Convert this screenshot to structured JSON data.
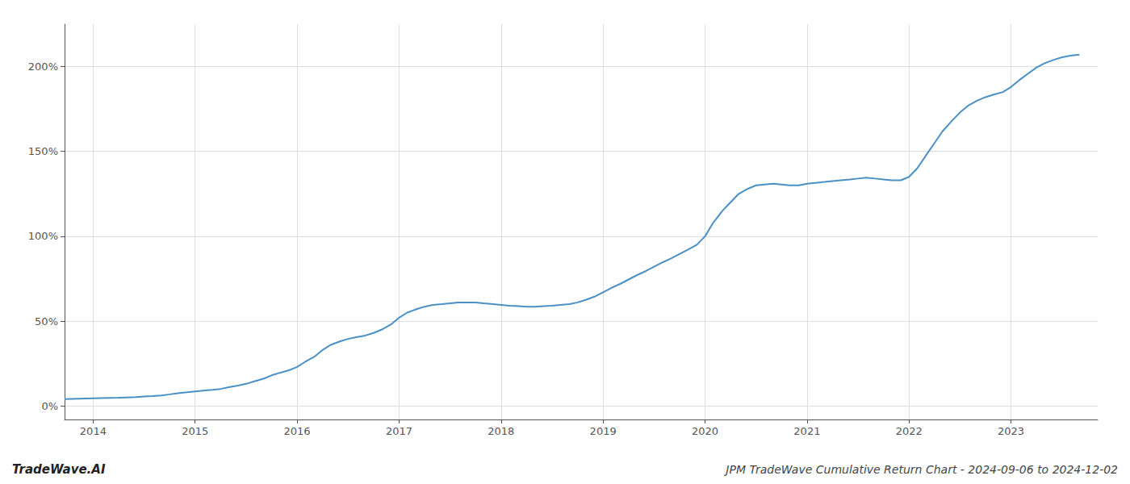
{
  "chart_data": {
    "type": "line",
    "title": "JPM TradeWave Cumulative Return Chart - 2024-09-06 to 2024-12-02",
    "annotations": [
      "TradeWave.AI"
    ],
    "color": "#4a90c4",
    "grid": true,
    "x": [
      2013.72,
      2014.0,
      2014.08,
      2014.17,
      2014.25,
      2014.33,
      2014.42,
      2014.5,
      2014.58,
      2014.67,
      2014.75,
      2014.83,
      2014.92,
      2015.0,
      2015.08,
      2015.17,
      2015.25,
      2015.33,
      2015.42,
      2015.5,
      2015.58,
      2015.67,
      2015.75,
      2015.83,
      2015.92,
      2016.0,
      2016.08,
      2016.17,
      2016.25,
      2016.33,
      2016.42,
      2016.5,
      2016.58,
      2016.67,
      2016.75,
      2016.83,
      2016.92,
      2017.0,
      2017.08,
      2017.17,
      2017.25,
      2017.33,
      2017.42,
      2017.5,
      2017.58,
      2017.67,
      2017.75,
      2017.83,
      2017.92,
      2018.0,
      2018.08,
      2018.17,
      2018.25,
      2018.33,
      2018.42,
      2018.5,
      2018.58,
      2018.67,
      2018.75,
      2018.83,
      2018.92,
      2019.0,
      2019.08,
      2019.17,
      2019.25,
      2019.33,
      2019.42,
      2019.5,
      2019.58,
      2019.67,
      2019.75,
      2019.83,
      2019.92,
      2020.0,
      2020.08,
      2020.17,
      2020.25,
      2020.33,
      2020.42,
      2020.5,
      2020.58,
      2020.67,
      2020.75,
      2020.83,
      2020.92,
      2021.0,
      2021.08,
      2021.17,
      2021.25,
      2021.33,
      2021.42,
      2021.5,
      2021.58,
      2021.67,
      2021.75,
      2021.83,
      2021.92,
      2022.0,
      2022.08,
      2022.17,
      2022.25,
      2022.33,
      2022.42,
      2022.5,
      2022.58,
      2022.67,
      2022.75,
      2022.83,
      2022.92,
      2023.0,
      2023.08,
      2023.17,
      2023.25,
      2023.33,
      2023.42,
      2023.5,
      2023.58,
      2023.67
    ],
    "values": [
      4.0,
      4.5,
      4.6,
      4.7,
      4.8,
      5.0,
      5.2,
      5.5,
      5.8,
      6.2,
      6.8,
      7.5,
      8.0,
      8.5,
      9.0,
      9.5,
      10.0,
      11.0,
      12.0,
      13.0,
      14.5,
      16.0,
      18.0,
      19.5,
      21.0,
      23.0,
      26.0,
      29.0,
      33.0,
      36.0,
      38.0,
      39.5,
      40.5,
      41.5,
      43.0,
      45.0,
      48.0,
      52.0,
      55.0,
      57.0,
      58.5,
      59.5,
      60.0,
      60.5,
      61.0,
      61.0,
      61.0,
      60.5,
      60.0,
      59.5,
      59.0,
      58.8,
      58.5,
      58.5,
      58.8,
      59.0,
      59.5,
      60.0,
      61.0,
      62.5,
      64.5,
      67.0,
      69.5,
      72.0,
      74.5,
      77.0,
      79.5,
      82.0,
      84.5,
      87.0,
      89.5,
      92.0,
      95.0,
      100.0,
      108.0,
      115.0,
      120.0,
      125.0,
      128.0,
      130.0,
      130.5,
      131.0,
      130.5,
      130.0,
      130.0,
      131.0,
      131.5,
      132.0,
      132.5,
      133.0,
      133.5,
      134.0,
      134.5,
      134.0,
      133.5,
      133.0,
      133.0,
      135.0,
      140.0,
      148.0,
      155.0,
      162.0,
      168.0,
      173.0,
      177.0,
      180.0,
      182.0,
      183.5,
      185.0,
      188.0,
      192.0,
      196.0,
      199.5,
      202.0,
      204.0,
      205.5,
      206.5,
      207.0
    ],
    "xlim": [
      2013.72,
      2023.85
    ],
    "xticks": [
      2014,
      2015,
      2016,
      2017,
      2018,
      2019,
      2020,
      2021,
      2022,
      2023
    ],
    "ylim": [
      -8,
      225
    ],
    "yticks": [
      {
        "value": 0,
        "label": "0%"
      },
      {
        "value": 50,
        "label": "50%"
      },
      {
        "value": 100,
        "label": "100%"
      },
      {
        "value": 150,
        "label": "150%"
      },
      {
        "value": 200,
        "label": "200%"
      }
    ]
  }
}
